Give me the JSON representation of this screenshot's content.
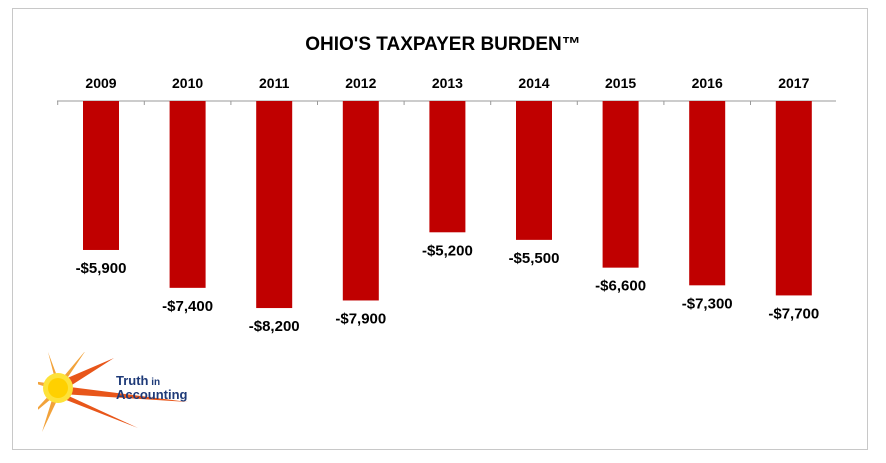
{
  "chart_data": {
    "type": "bar",
    "title": "OHIO'S TAXPAYER BURDEN™",
    "categories": [
      "2009",
      "2010",
      "2011",
      "2012",
      "2013",
      "2014",
      "2015",
      "2016",
      "2017"
    ],
    "values": [
      -5900,
      -7400,
      -8200,
      -7900,
      -5200,
      -5500,
      -6600,
      -7300,
      -7700
    ],
    "data_labels": [
      "-$5,900",
      "-$7,400",
      "-$8,200",
      "-$7,900",
      "-$5,200",
      "-$5,500",
      "-$6,600",
      "-$7,300",
      "-$7,700"
    ],
    "xlabel": "",
    "ylabel": "",
    "x_axis_position": "top",
    "grid": false,
    "legend": "none",
    "bar_color": "#c00000"
  },
  "logo": {
    "line1_main": "Truth",
    "line1_small": " in",
    "line2": "Accounting"
  }
}
